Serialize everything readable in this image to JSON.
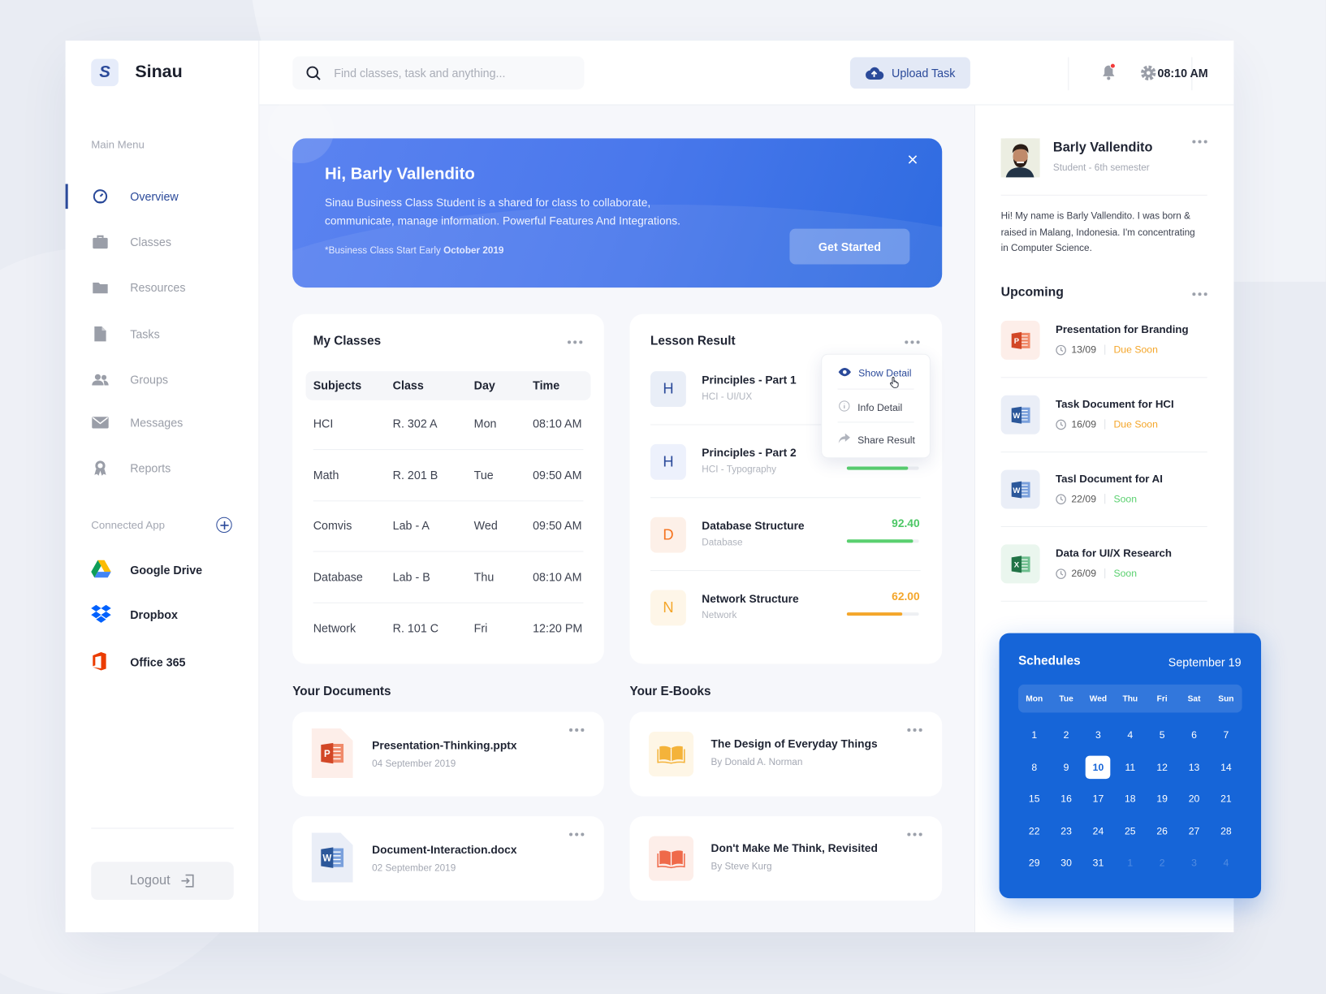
{
  "app": {
    "logo_letter": "S",
    "name": "Sinau"
  },
  "header": {
    "search_placeholder": "Find classes, task and anything...",
    "upload_label": "Upload Task",
    "time": "08:10 AM",
    "notification_dot": true
  },
  "sidebar": {
    "main_menu_label": "Main Menu",
    "items": [
      {
        "label": "Overview",
        "icon": "dashboard-icon",
        "active": true
      },
      {
        "label": "Classes",
        "icon": "briefcase-icon"
      },
      {
        "label": "Resources",
        "icon": "folder-icon"
      },
      {
        "label": "Tasks",
        "icon": "file-icon"
      },
      {
        "label": "Groups",
        "icon": "users-icon"
      },
      {
        "label": "Messages",
        "icon": "mail-icon"
      },
      {
        "label": "Reports",
        "icon": "award-icon"
      }
    ],
    "connected_label": "Connected App",
    "apps": [
      {
        "label": "Google Drive",
        "icon": "google-drive-icon"
      },
      {
        "label": "Dropbox",
        "icon": "dropbox-icon"
      },
      {
        "label": "Office 365",
        "icon": "office-icon"
      }
    ],
    "logout_label": "Logout"
  },
  "banner": {
    "title": "Hi, Barly Vallendito",
    "line1": "Sinau Business Class Student is a shared for class to collaborate,",
    "line2": "communicate, manage information. Powerful Features And Integrations.",
    "note_prefix": "*Business Class Start Early ",
    "note_bold": "October 2019",
    "cta": "Get Started"
  },
  "my_classes": {
    "title": "My Classes",
    "columns": [
      "Subjects",
      "Class",
      "Day",
      "Time"
    ],
    "rows": [
      [
        "HCI",
        "R. 302 A",
        "Mon",
        "08:10 AM"
      ],
      [
        "Math",
        "R. 201 B",
        "Tue",
        "09:50 AM"
      ],
      [
        "Comvis",
        "Lab - A",
        "Wed",
        "09:50 AM"
      ],
      [
        "Database",
        "Lab - B",
        "Thu",
        "08:10 AM"
      ],
      [
        "Network",
        "R. 101 C",
        "Fri",
        "12:20 PM"
      ]
    ]
  },
  "lesson_result": {
    "title": "Lesson Result",
    "items": [
      {
        "letter": "H",
        "title": "Principles - Part 1",
        "subtitle": "HCI - UI/UX",
        "color": "#2b4a9a",
        "bg": "#e9eef7"
      },
      {
        "letter": "H",
        "title": "Principles - Part 2",
        "subtitle": "HCI - Typography",
        "color": "#2b4a9a",
        "bg": "#edf1fc",
        "progress": 0.85,
        "bar": "#5ad06f"
      },
      {
        "letter": "D",
        "title": "Database Structure",
        "subtitle": "Database",
        "score": "92.40",
        "progress": 0.924,
        "color": "#f5731f",
        "bg": "#fdf0e8",
        "bar": "#5ad06f",
        "score_color": "#4cc765"
      },
      {
        "letter": "N",
        "title": "Network Structure",
        "subtitle": "Network",
        "score": "62.00",
        "progress": 0.77,
        "color": "#f4a62a",
        "bg": "#fef6e8",
        "bar": "#f4a62a",
        "score_color": "#f4a62a"
      }
    ],
    "menu": [
      {
        "label": "Show Detail",
        "icon": "eye-icon"
      },
      {
        "label": "Info Detail",
        "icon": "info-icon"
      },
      {
        "label": "Share Result",
        "icon": "share-icon"
      }
    ]
  },
  "documents": {
    "title": "Your Documents",
    "items": [
      {
        "name": "Presentation-Thinking.pptx",
        "date": "04 September 2019",
        "icon": "powerpoint-icon"
      },
      {
        "name": "Document-Interaction.docx",
        "date": "02 September 2019",
        "icon": "word-icon"
      }
    ]
  },
  "ebooks": {
    "title": "Your E-Books",
    "items": [
      {
        "title": "The Design of Everyday Things",
        "author": "By Donald A. Norman",
        "color": "#f4b33a",
        "bg": "#fef6e6"
      },
      {
        "title": "Don't Make Me Think, Revisited",
        "author": "By Steve Kurg",
        "color": "#ef6a4a",
        "bg": "#fdeee9"
      }
    ]
  },
  "profile": {
    "name": "Barly Vallendito",
    "role": "Student - 6th semester",
    "bio": "Hi! My name is Barly Vallendito. I was born & raised in Malang, Indonesia. I'm concentrating in Computer Science."
  },
  "upcoming": {
    "title": "Upcoming",
    "items": [
      {
        "title": "Presentation for Branding",
        "date": "13/09",
        "status": "Due Soon",
        "status_color": "#f4a62a",
        "icon": "powerpoint-icon"
      },
      {
        "title": "Task Document for HCI",
        "date": "16/09",
        "status": "Due Soon",
        "status_color": "#f4a62a",
        "icon": "word-icon"
      },
      {
        "title": "Tasl Document for AI",
        "date": "22/09",
        "status": "Soon",
        "status_color": "#5ad06f",
        "icon": "word-icon"
      },
      {
        "title": "Data for UI/X Research",
        "date": "26/09",
        "status": "Soon",
        "status_color": "#5ad06f",
        "icon": "excel-icon"
      }
    ]
  },
  "schedule": {
    "title": "Schedules",
    "month": "September 19",
    "weekdays": [
      "Mon",
      "Tue",
      "Wed",
      "Thu",
      "Fri",
      "Sat",
      "Sun"
    ],
    "selected_day": 10,
    "days": [
      "1",
      "2",
      "3",
      "4",
      "5",
      "6",
      "7",
      "8",
      "9",
      "10",
      "11",
      "12",
      "13",
      "14",
      "15",
      "16",
      "17",
      "18",
      "19",
      "20",
      "21",
      "22",
      "23",
      "24",
      "25",
      "26",
      "27",
      "28",
      "29",
      "30",
      "31",
      "1",
      "2",
      "3",
      "4"
    ],
    "next_month_count": 4
  },
  "colors": {
    "primary": "#2b4a9a",
    "calendar": "#1665d8",
    "banner": "#4a78ec"
  }
}
